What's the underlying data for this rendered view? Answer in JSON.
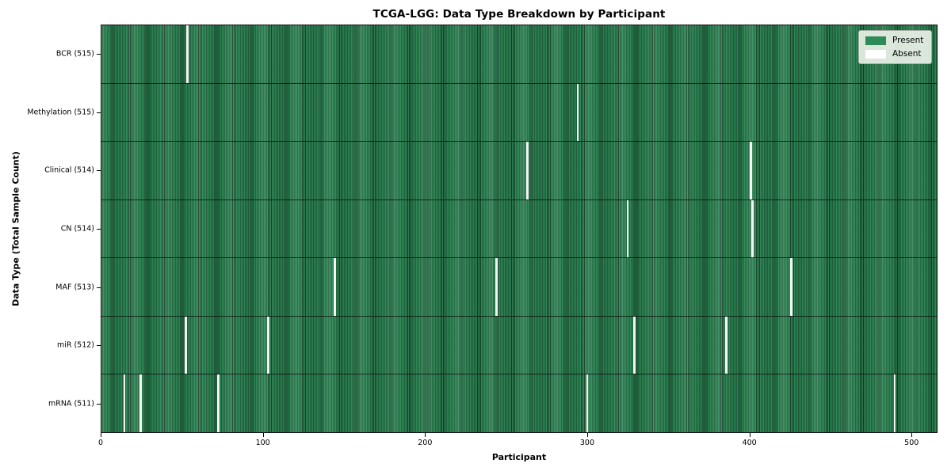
{
  "title": "TCGA-LGG: Data Type Breakdown by Participant",
  "legend": {
    "present_label": "Present",
    "absent_label": "Absent"
  },
  "colors": {
    "present": "#2e8b57",
    "absent": "#ffffff",
    "stripe_edge_dark": "#153f28",
    "gap_line": "#f4f4f4"
  },
  "chart_data": {
    "type": "heatmap",
    "title": "TCGA-LGG: Data Type Breakdown by Participant",
    "xlabel": "Participant",
    "ylabel": "Data Type (Total Sample Count)",
    "x_ticks": [
      0,
      100,
      200,
      300,
      400,
      500
    ],
    "xlim": [
      0,
      516
    ],
    "n_participants": 516,
    "grid": false,
    "legend_position": "upper right",
    "legend": [
      {
        "label": "Present",
        "color": "#2e8b57"
      },
      {
        "label": "Absent",
        "color": "#ffffff"
      }
    ],
    "rows": [
      {
        "label": "BCR (515)",
        "data_type": "BCR",
        "present_count": 515,
        "absent_participants": [
          53
        ]
      },
      {
        "label": "Methylation (515)",
        "data_type": "Methylation",
        "present_count": 515,
        "absent_participants": [
          294
        ]
      },
      {
        "label": "Clinical (514)",
        "data_type": "Clinical",
        "present_count": 514,
        "absent_participants": [
          263,
          401
        ]
      },
      {
        "label": "CN (514)",
        "data_type": "CN",
        "present_count": 514,
        "absent_participants": [
          325,
          402
        ]
      },
      {
        "label": "MAF (513)",
        "data_type": "MAF",
        "present_count": 513,
        "absent_participants": [
          144,
          244,
          426
        ]
      },
      {
        "label": "miR (512)",
        "data_type": "miR",
        "present_count": 512,
        "absent_participants": [
          52,
          103,
          329,
          386
        ]
      },
      {
        "label": "mRNA (511)",
        "data_type": "mRNA",
        "present_count": 511,
        "absent_participants": [
          14,
          24,
          72,
          300,
          490
        ]
      }
    ]
  }
}
